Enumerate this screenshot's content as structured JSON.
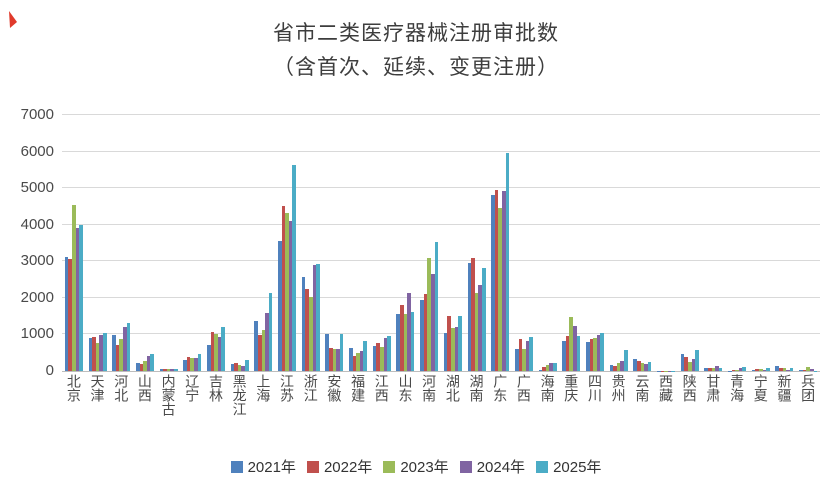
{
  "page": {
    "background": "#ffffff"
  },
  "annotation": {
    "mark_color": "#e03a2b"
  },
  "title": {
    "line1": "省市二类医疗器械注册审批数",
    "line2": "（含首次、延续、变更注册）"
  },
  "chart_data": {
    "type": "bar",
    "title": "省市二类医疗器械注册审批数（含首次、延续、变更注册）",
    "xlabel": "",
    "ylabel": "",
    "ylim": [
      0,
      7000
    ],
    "ytick_interval": 1000,
    "yticks": [
      0,
      1000,
      2000,
      3000,
      4000,
      5000,
      6000,
      7000
    ],
    "grid": true,
    "legend_position": "bottom",
    "grid_color": "#d9d9d9",
    "axis_color": "#bdbdbd",
    "categories": [
      "北京",
      "天津",
      "河北",
      "山西",
      "内蒙古",
      "辽宁",
      "吉林",
      "黑龙江",
      "上海",
      "江苏",
      "浙江",
      "安徽",
      "福建",
      "江西",
      "山东",
      "河南",
      "湖北",
      "湖南",
      "广东",
      "广西",
      "海南",
      "重庆",
      "四川",
      "贵州",
      "云南",
      "西藏",
      "陕西",
      "甘肃",
      "青海",
      "宁夏",
      "新疆",
      "兵团"
    ],
    "series": [
      {
        "name": "2021年",
        "color": "#4F81BD",
        "values": [
          3120,
          890,
          980,
          210,
          55,
          300,
          720,
          190,
          1365,
          3560,
          2570,
          1000,
          620,
          680,
          1560,
          1940,
          1045,
          2950,
          4800,
          600,
          25,
          820,
          800,
          165,
          320,
          10,
          455,
          75,
          10,
          30,
          130,
          15
        ]
      },
      {
        "name": "2022年",
        "color": "#C0504D",
        "values": [
          3050,
          935,
          710,
          180,
          50,
          375,
          1070,
          210,
          980,
          4500,
          2255,
          620,
          410,
          775,
          1800,
          2100,
          1510,
          3090,
          4950,
          865,
          120,
          965,
          870,
          135,
          280,
          5,
          390,
          90,
          15,
          55,
          75,
          20
        ]
      },
      {
        "name": "2023年",
        "color": "#9BBB59",
        "values": [
          4545,
          775,
          875,
          280,
          45,
          345,
          1010,
          165,
          1120,
          4330,
          2030,
          590,
          500,
          645,
          1570,
          3090,
          1180,
          2120,
          4455,
          600,
          155,
          1465,
          890,
          210,
          230,
          10,
          235,
          90,
          20,
          60,
          70,
          120
        ]
      },
      {
        "name": "2024年",
        "color": "#8064A2",
        "values": [
          3920,
          980,
          1210,
          410,
          50,
          355,
          940,
          135,
          1590,
          4090,
          2890,
          600,
          555,
          890,
          2120,
          2645,
          1210,
          2360,
          4930,
          830,
          230,
          1220,
          980,
          280,
          190,
          5,
          320,
          145,
          70,
          20,
          30,
          65
        ]
      },
      {
        "name": "2025年",
        "color": "#4BACC6",
        "values": [
          4000,
          1045,
          1300,
          465,
          55,
          470,
          1210,
          300,
          2135,
          5640,
          2920,
          1010,
          830,
          955,
          1620,
          3530,
          1500,
          2820,
          5950,
          920,
          230,
          945,
          1030,
          580,
          255,
          10,
          575,
          70,
          100,
          70,
          75,
          10
        ]
      }
    ]
  }
}
